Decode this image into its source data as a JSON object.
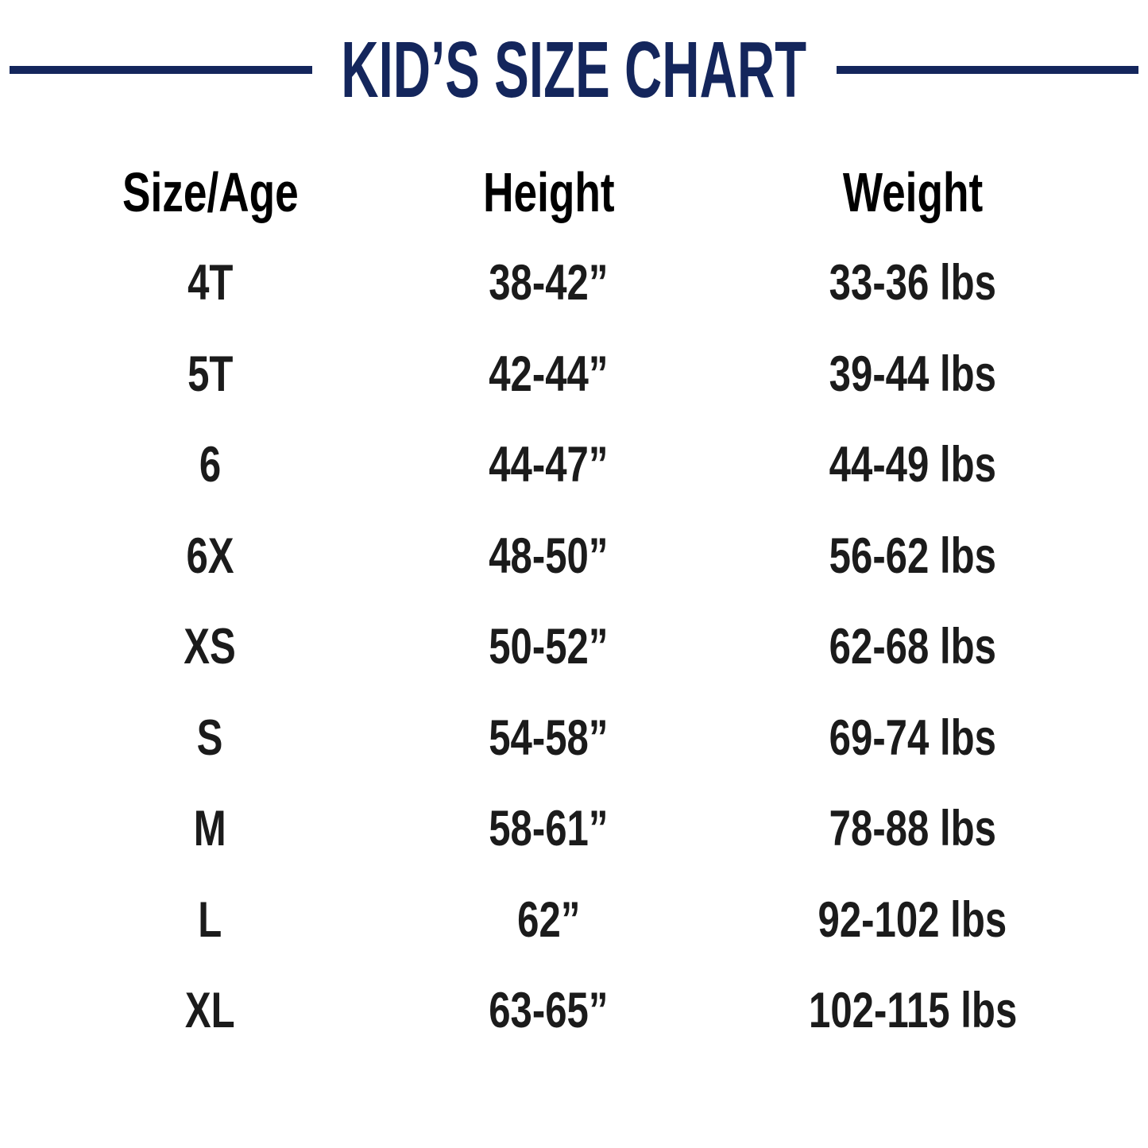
{
  "colors": {
    "navy": "#14265c",
    "text": "#1b1b1b"
  },
  "chart_data": {
    "type": "table",
    "title": "KID’S SIZE CHART",
    "columns": [
      "Size/Age",
      "Height",
      "Weight"
    ],
    "rows": [
      [
        "4T",
        "38-42”",
        "33-36 lbs"
      ],
      [
        "5T",
        "42-44”",
        "39-44 lbs"
      ],
      [
        "6",
        "44-47”",
        "44-49 lbs"
      ],
      [
        "6X",
        "48-50”",
        "56-62 lbs"
      ],
      [
        "XS",
        "50-52”",
        "62-68 lbs"
      ],
      [
        "S",
        "54-58”",
        "69-74 lbs"
      ],
      [
        "M",
        "58-61”",
        "78-88 lbs"
      ],
      [
        "L",
        "62”",
        "92-102 lbs"
      ],
      [
        "XL",
        "63-65”",
        "102-115 lbs"
      ]
    ],
    "layout": {
      "grid_lines": "off",
      "header_style": "bold",
      "align": "center",
      "legend": "none"
    }
  }
}
